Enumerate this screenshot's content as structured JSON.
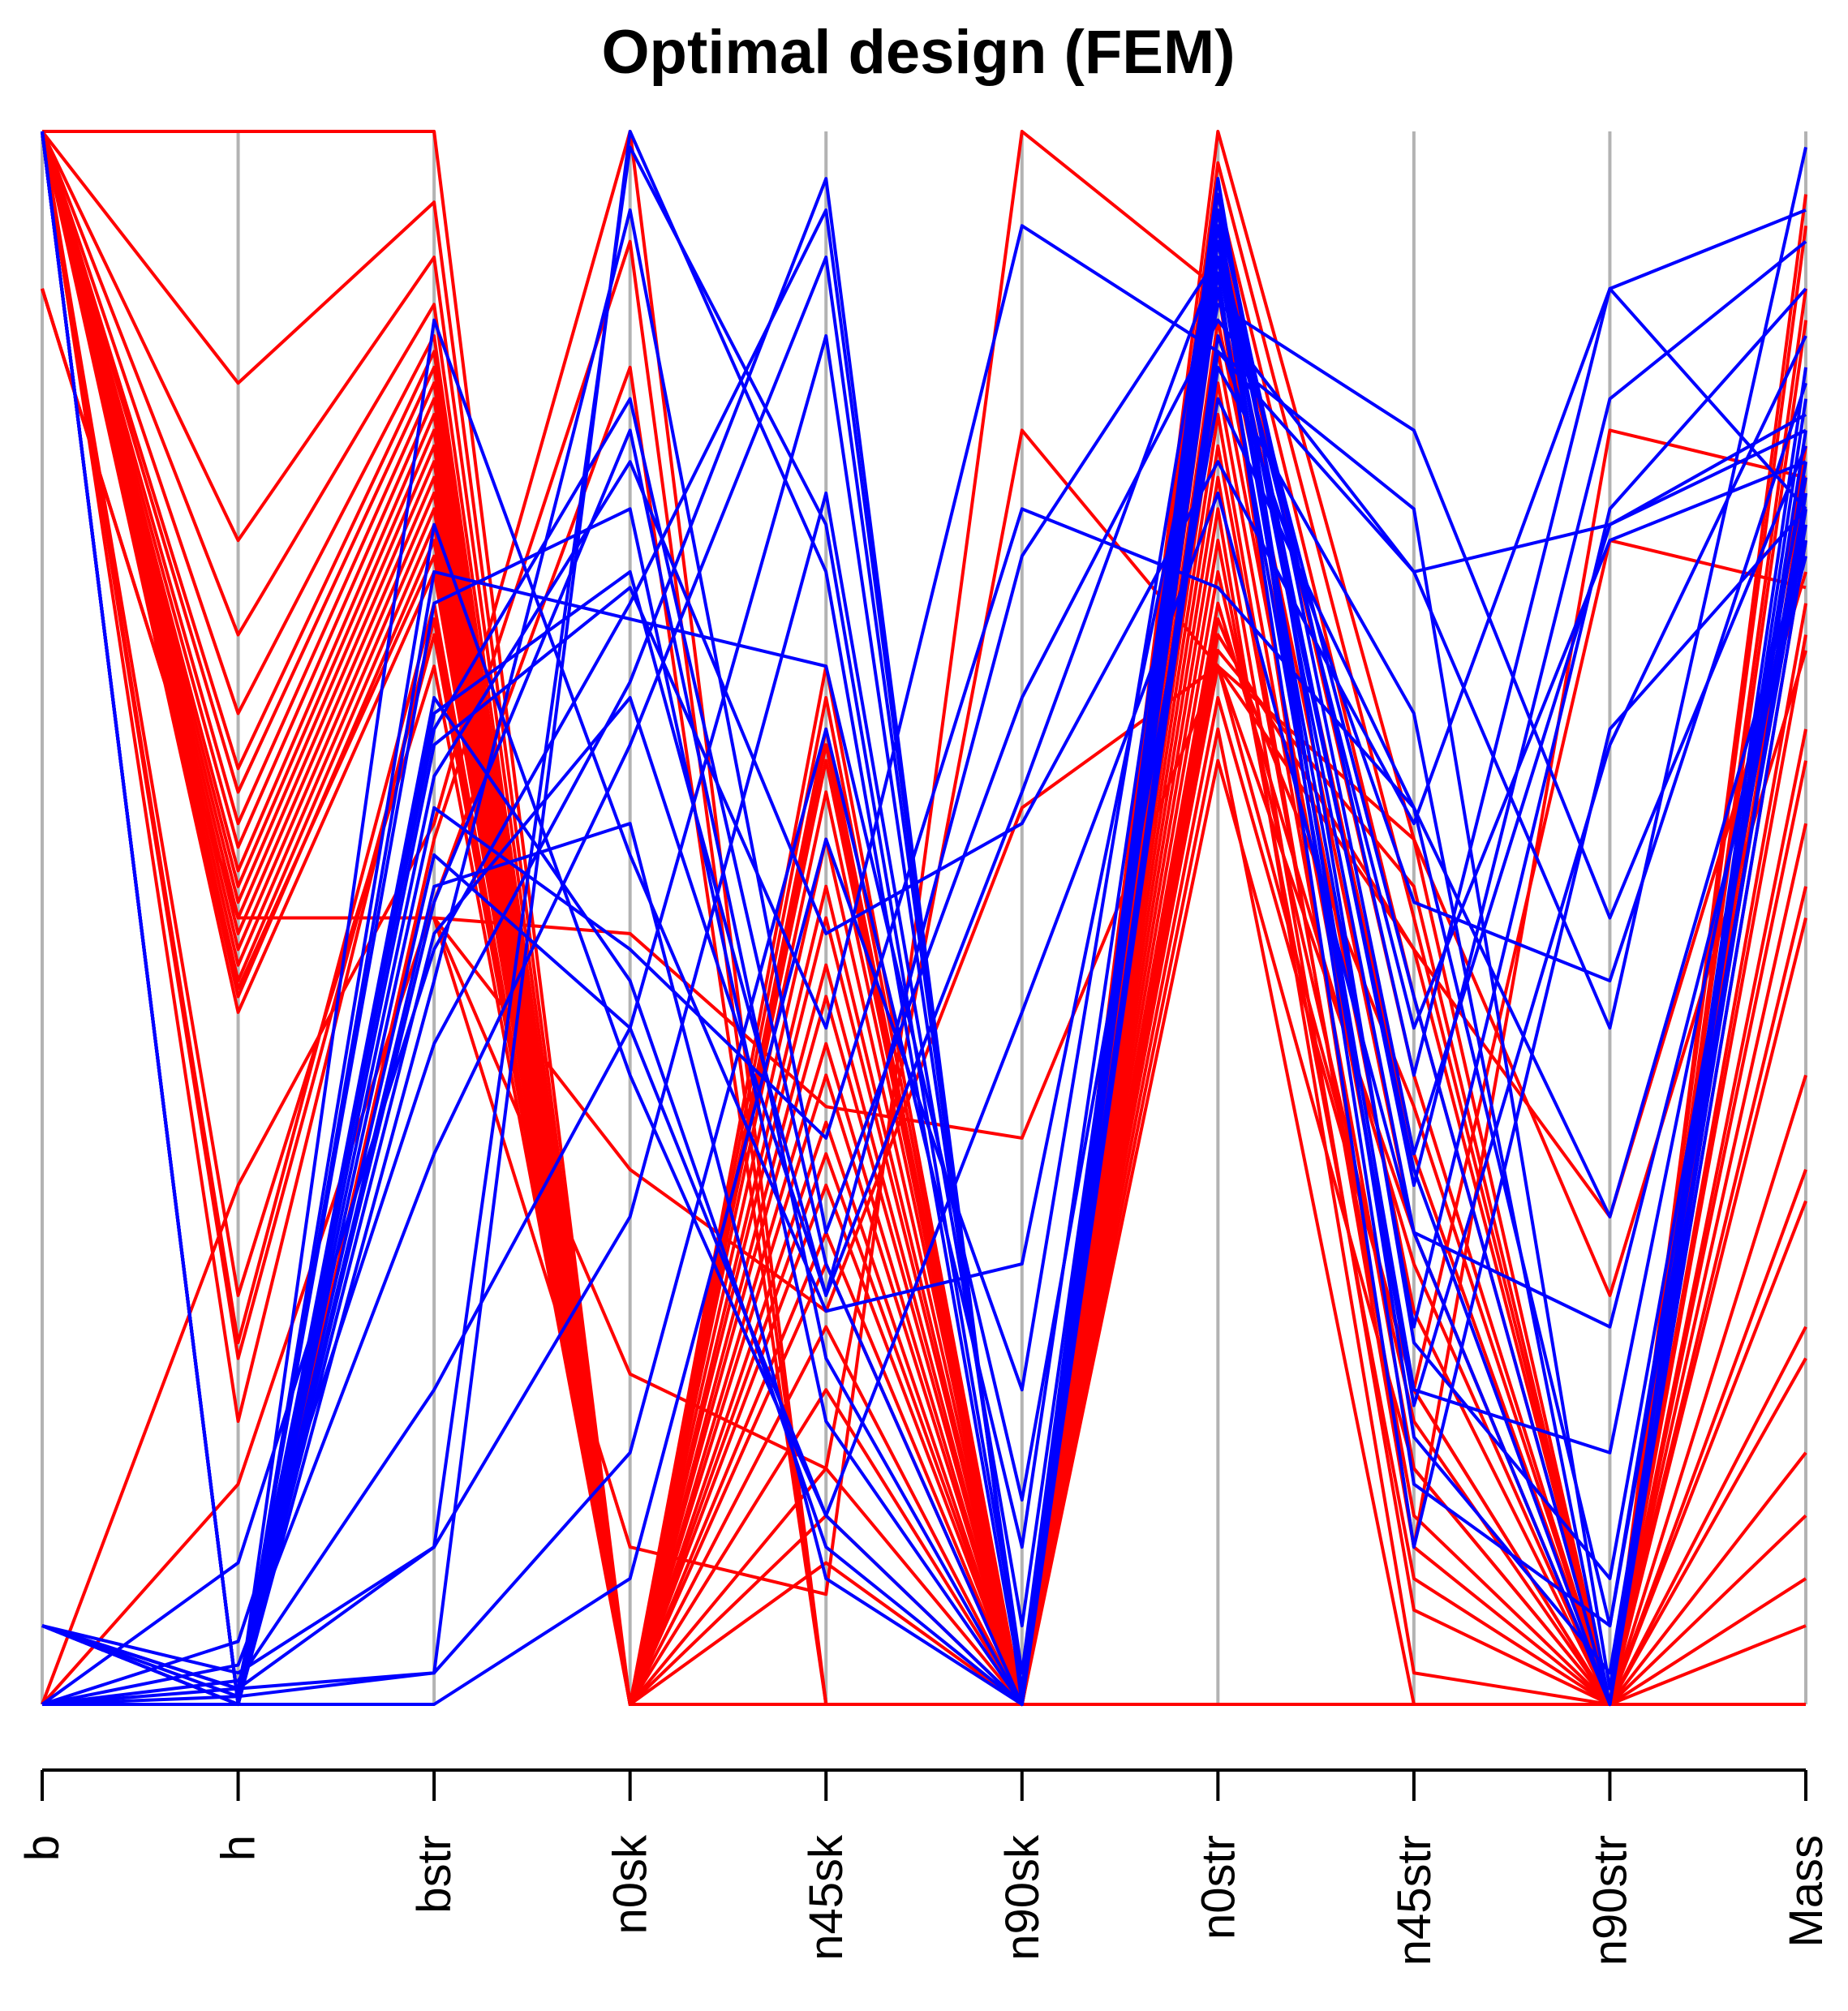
{
  "chart_data": {
    "type": "parallel_coordinates",
    "title": "Optimal design (FEM)",
    "axes": [
      "b",
      "h",
      "bstr",
      "n0sk",
      "n45sk",
      "n90sk",
      "n0str",
      "n45str",
      "n90str",
      "Mass"
    ],
    "ylim": [
      0,
      1
    ],
    "grid": false,
    "colors": {
      "red_group": "#ff0000",
      "blue_group": "#0000ff",
      "axis_line": "#b3b3b3"
    },
    "series": [
      {
        "name": "red",
        "color": "#ff0000",
        "lines": [
          [
            1,
            0.84,
            0.955,
            0.0,
            0.3,
            0.0,
            1.0,
            0.55,
            0.0,
            0.08
          ],
          [
            1,
            0.74,
            0.92,
            0.0,
            0.35,
            0.0,
            0.98,
            0.5,
            0.0,
            0.16
          ],
          [
            1,
            0.68,
            0.89,
            0.0,
            0.4,
            0.0,
            0.96,
            0.45,
            0.0,
            0.24
          ],
          [
            1,
            0.63,
            0.87,
            0.0,
            0.45,
            0.0,
            0.94,
            0.4,
            0.0,
            0.32
          ],
          [
            1,
            0.595,
            0.86,
            0.0,
            0.5,
            0.0,
            0.92,
            0.35,
            0.0,
            0.4
          ],
          [
            1,
            0.58,
            0.85,
            0.0,
            0.55,
            0.0,
            0.9,
            0.3,
            0.0,
            0.5
          ],
          [
            1,
            0.56,
            0.84,
            0.0,
            0.6,
            0.0,
            0.88,
            0.25,
            0.0,
            0.6
          ],
          [
            1,
            0.545,
            0.83,
            0.0,
            0.62,
            0.0,
            0.86,
            0.2,
            0.0,
            0.7
          ],
          [
            1,
            0.53,
            0.82,
            0.0,
            0.64,
            0.0,
            0.84,
            0.15,
            0.0,
            0.8
          ],
          [
            1,
            0.52,
            0.81,
            0.0,
            0.66,
            0.0,
            0.82,
            0.1,
            0.0,
            0.9
          ],
          [
            1,
            0.51,
            0.8,
            0.0,
            0.61,
            0.0,
            0.8,
            0.12,
            0.0,
            0.96
          ],
          [
            1,
            0.5,
            0.79,
            0.0,
            0.58,
            0.0,
            0.78,
            0.06,
            0.0,
            0.94
          ],
          [
            1,
            0.49,
            0.78,
            0.0,
            0.52,
            0.0,
            0.76,
            0.02,
            0.0,
            0.88
          ],
          [
            1,
            0.48,
            0.77,
            0.0,
            0.47,
            0.0,
            0.74,
            0.08,
            0.0,
            0.78
          ],
          [
            1,
            0.47,
            0.76,
            0.0,
            0.42,
            0.0,
            0.72,
            0.18,
            0.0,
            0.74
          ],
          [
            1,
            0.46,
            0.75,
            0.0,
            0.37,
            0.0,
            0.7,
            0.28,
            0.0,
            0.68
          ],
          [
            1,
            0.45,
            0.74,
            0.0,
            0.33,
            0.0,
            0.69,
            0.38,
            0.0,
            0.62
          ],
          [
            1,
            0.455,
            0.73,
            0.0,
            0.28,
            0.0,
            0.68,
            0.48,
            0.0,
            0.56
          ],
          [
            1,
            0.44,
            0.72,
            0.0,
            0.24,
            0.0,
            0.67,
            0.52,
            0.0,
            0.52
          ],
          [
            1,
            0.23,
            0.7,
            0.0,
            0.2,
            0.0,
            0.66,
            0.3,
            0.0,
            0.22
          ],
          [
            1,
            0.18,
            0.69,
            0.0,
            0.15,
            0.0,
            0.64,
            0.2,
            0.0,
            0.12
          ],
          [
            1,
            0.22,
            0.68,
            0.0,
            0.12,
            0.0,
            0.62,
            0.0,
            0.0,
            0.05
          ],
          [
            1,
            0.26,
            0.66,
            0.0,
            0.09,
            0.0,
            0.6,
            0.15,
            0.0,
            0.34
          ],
          [
            0,
            0.33,
            0.56,
            1.0,
            0.0,
            0.0,
            0.0,
            0.0,
            0.0,
            0.0
          ],
          [
            0,
            0.14,
            0.51,
            0.85,
            0.0,
            0.0,
            0.0,
            0.0,
            0.0,
            0.0
          ],
          [
            0,
            0.0,
            0.55,
            0.93,
            0.0,
            0.0,
            0.0,
            0.0,
            0.0,
            0.0
          ],
          [
            1,
            1.0,
            1.0,
            0.0,
            0.0,
            0.0,
            0.0,
            0.0,
            0.0,
            0.0
          ],
          [
            0.9,
            0.5,
            0.5,
            0.34,
            0.25,
            0.57,
            0.66,
            0.55,
            0.26,
            0.67
          ],
          [
            0.9,
            0.5,
            0.5,
            0.49,
            0.38,
            0.36,
            0.66,
            0.48,
            0.31,
            0.72
          ],
          [
            0.9,
            0.5,
            0.5,
            0.21,
            0.15,
            0.81,
            0.66,
            0.2,
            0.74,
            0.71
          ],
          [
            0.9,
            0.5,
            0.5,
            0.1,
            0.07,
            1.0,
            0.9,
            0.1,
            0.81,
            0.78
          ]
        ]
      },
      {
        "name": "blue",
        "color": "#0000ff",
        "lines": [
          [
            0,
            0.0,
            0.0,
            0.08,
            0.55,
            0.2,
            0.95,
            0.4,
            0.9,
            0.95
          ],
          [
            0,
            0.005,
            0.02,
            0.16,
            0.62,
            0.1,
            0.94,
            0.33,
            0.83,
            0.93
          ],
          [
            0,
            0.01,
            0.1,
            0.31,
            0.77,
            0.05,
            0.92,
            0.24,
            0.76,
            0.9
          ],
          [
            0,
            0.015,
            0.2,
            0.43,
            0.87,
            0.02,
            0.9,
            0.19,
            0.61,
            0.87
          ],
          [
            0,
            0.025,
            0.35,
            0.61,
            0.92,
            0.01,
            0.87,
            0.51,
            0.46,
            0.84
          ],
          [
            0,
            0.04,
            0.42,
            0.65,
            0.97,
            0.0,
            0.86,
            0.76,
            0.01,
            0.81
          ],
          [
            0,
            0.09,
            0.48,
            0.7,
            0.95,
            0.003,
            0.85,
            0.63,
            0.0,
            0.77
          ],
          [
            1,
            0.0,
            0.57,
            0.48,
            0.36,
            0.76,
            0.71,
            0.57,
            0.05,
            0.75
          ],
          [
            1,
            0.0,
            0.54,
            0.43,
            0.12,
            0.44,
            0.77,
            0.3,
            0.24,
            0.73
          ],
          [
            1,
            0.0,
            0.59,
            0.79,
            0.49,
            0.56,
            0.79,
            0.56,
            0.9,
            0.76
          ],
          [
            1,
            0.0,
            0.49,
            0.64,
            0.26,
            0.73,
            0.92,
            0.2,
            0.16,
            0.78
          ],
          [
            1,
            0.0,
            0.61,
            0.71,
            0.43,
            0.94,
            0.86,
            0.72,
            0.75,
            0.82
          ],
          [
            1,
            0.0,
            0.46,
            0.95,
            0.3,
            0.64,
            0.88,
            0.72,
            0.43,
            0.99
          ],
          [
            1,
            0.0,
            0.72,
            0.69,
            0.66,
            0.13,
            0.83,
            0.57,
            0.31,
            0.74
          ],
          [
            1,
            0.0,
            0.88,
            0.54,
            0.25,
            0.28,
            0.89,
            0.81,
            0.5,
            0.8
          ],
          [
            1,
            0.0,
            0.63,
            0.72,
            0.26,
            0.58,
            0.92,
            0.43,
            0.74,
            0.79
          ],
          [
            0.05,
            0.01,
            0.02,
            1.0,
            0.72,
            0.01,
            0.91,
            0.1,
            0.62,
            0.76
          ],
          [
            0.05,
            0.02,
            0.1,
            0.99,
            0.75,
            0.02,
            0.96,
            0.35,
            0.75,
            0.81
          ],
          [
            0.05,
            0.01,
            0.62,
            0.83,
            0.28,
            0.0,
            0.95,
            0.17,
            0.02,
            0.76
          ],
          [
            0.05,
            0.0,
            0.51,
            0.81,
            0.22,
            0.0,
            0.97,
            0.23,
            0.08,
            0.77
          ],
          [
            0.05,
            0.005,
            0.7,
            0.76,
            0.18,
            0.0,
            0.94,
            0.14,
            0.05,
            0.79
          ],
          [
            0.05,
            0.0,
            0.75,
            0.4,
            0.12,
            0.0,
            0.93,
            0.3,
            0.0,
            0.83
          ],
          [
            0.05,
            0.0,
            0.52,
            0.56,
            0.08,
            0.0,
            0.92,
            0.34,
            0.0,
            0.85
          ],
          [
            0.05,
            0.0,
            0.64,
            0.46,
            0.1,
            0.0,
            0.93,
            0.45,
            0.0,
            0.74
          ]
        ]
      }
    ]
  }
}
